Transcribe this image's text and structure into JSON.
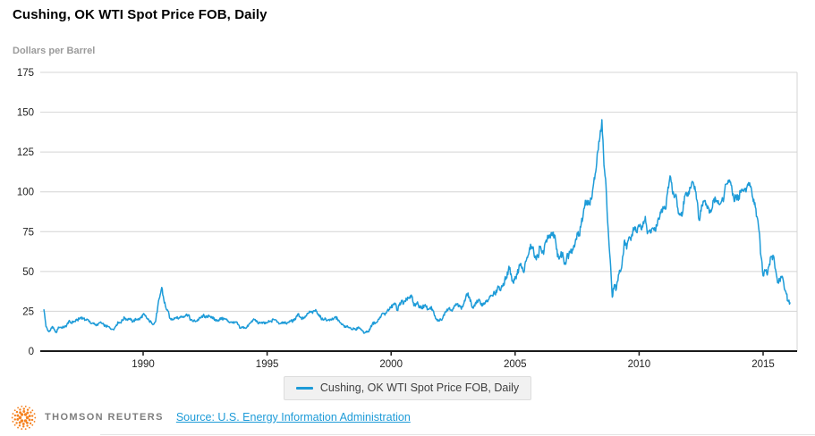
{
  "header": {
    "title": "Cushing, OK WTI Spot Price FOB, Daily",
    "units_label": "Dollars per Barrel"
  },
  "legend": {
    "series_label": "Cushing, OK WTI Spot Price FOB, Daily"
  },
  "footer": {
    "brand": "THOMSON REUTERS",
    "source_link": "Source: U.S. Energy Information Administration"
  },
  "colors": {
    "line": "#1d9bd8",
    "link": "#1d9bd8",
    "grid": "#d4d4d4",
    "axis": "#1a1a1a",
    "tick_text": "#1f1f1f",
    "subtitle": "#9b9b9b",
    "legend_bg": "#f1f1f1",
    "brand_orange": "#f58220",
    "brand_text": "#7d7d7d"
  },
  "chart_data": {
    "type": "line",
    "title": "Cushing, OK WTI Spot Price FOB, Daily",
    "ylabel": "Dollars per Barrel",
    "xlabel": "",
    "grid": "horizontal",
    "legend_position": "bottom-center",
    "ylim": [
      0,
      175
    ],
    "y_ticks": [
      0,
      25,
      50,
      75,
      100,
      125,
      150,
      175
    ],
    "x_ticks": [
      1990,
      1995,
      2000,
      2005,
      2010,
      2015
    ],
    "xlim_years": [
      1985.85,
      2016.4
    ],
    "series": [
      {
        "name": "Cushing, OK WTI Spot Price FOB, Daily",
        "color": "#1d9bd8",
        "x_start_year": 1986,
        "x_interval": "monthly",
        "x_end": "2016-02",
        "values": [
          25.9,
          15.4,
          12.6,
          12.8,
          15.4,
          13.4,
          11.6,
          15.1,
          14.9,
          14.9,
          15.2,
          16.1,
          18.7,
          17.7,
          18.3,
          18.7,
          19.4,
          20.1,
          21.3,
          20.3,
          19.5,
          19.9,
          18.9,
          17.3,
          17.2,
          16.8,
          16.2,
          17.9,
          17.4,
          16.5,
          15.5,
          15.5,
          14.5,
          13.8,
          14.0,
          16.4,
          18.0,
          17.9,
          19.4,
          21.0,
          20.0,
          20.0,
          19.6,
          18.5,
          19.6,
          20.1,
          19.9,
          21.1,
          22.9,
          22.1,
          20.4,
          18.6,
          18.2,
          17.0,
          18.5,
          27.2,
          33.7,
          40.0,
          32.3,
          27.3,
          25.2,
          20.5,
          19.9,
          20.8,
          21.2,
          20.2,
          21.4,
          21.7,
          21.9,
          23.2,
          22.5,
          19.5,
          18.8,
          19.0,
          19.0,
          20.2,
          20.9,
          22.4,
          21.8,
          21.3,
          21.9,
          21.7,
          20.3,
          19.4,
          19.1,
          20.1,
          20.3,
          20.3,
          19.9,
          19.1,
          17.9,
          18.0,
          17.5,
          18.1,
          16.7,
          14.5,
          15.0,
          14.8,
          14.7,
          16.4,
          17.9,
          19.1,
          19.7,
          18.4,
          17.5,
          17.7,
          18.1,
          17.2,
          18.0,
          18.5,
          18.5,
          19.9,
          19.7,
          18.4,
          17.3,
          18.0,
          18.2,
          17.4,
          18.0,
          19.0,
          18.9,
          19.1,
          21.3,
          23.5,
          21.2,
          20.5,
          21.3,
          22.0,
          24.0,
          24.9,
          23.7,
          25.4,
          25.1,
          22.2,
          21.0,
          19.7,
          20.8,
          19.2,
          19.6,
          19.9,
          19.8,
          21.3,
          20.2,
          18.3,
          16.7,
          16.1,
          15.0,
          15.4,
          14.9,
          13.7,
          14.1,
          13.4,
          15.0,
          14.4,
          13.0,
          11.3,
          12.5,
          12.0,
          14.7,
          17.3,
          17.7,
          17.9,
          20.1,
          21.3,
          23.9,
          22.6,
          25.0,
          26.1,
          27.2,
          29.4,
          29.9,
          25.7,
          28.8,
          31.8,
          29.7,
          31.2,
          33.9,
          33.1,
          34.4,
          28.5,
          29.6,
          29.6,
          27.2,
          27.5,
          28.6,
          27.6,
          26.4,
          27.4,
          26.2,
          22.2,
          19.7,
          19.3,
          19.7,
          20.7,
          24.4,
          26.3,
          27.0,
          25.5,
          26.9,
          28.4,
          29.7,
          28.9,
          26.3,
          29.4,
          33.0,
          35.8,
          33.5,
          28.2,
          28.1,
          30.7,
          30.8,
          31.6,
          28.3,
          30.3,
          31.1,
          32.1,
          34.3,
          34.7,
          36.8,
          36.7,
          40.3,
          38.0,
          40.8,
          44.9,
          46.0,
          53.3,
          48.5,
          43.3,
          46.8,
          48.0,
          54.3,
          53.0,
          49.8,
          56.3,
          58.7,
          65.0,
          65.6,
          62.4,
          58.3,
          59.4,
          65.5,
          61.6,
          62.9,
          69.7,
          70.9,
          71.0,
          74.4,
          73.0,
          63.9,
          58.9,
          59.4,
          62.0,
          54.5,
          59.3,
          60.6,
          64.0,
          63.5,
          67.5,
          74.1,
          72.4,
          79.9,
          86.2,
          94.6,
          91.7,
          93.0,
          95.4,
          105.5,
          112.6,
          125.4,
          133.9,
          145.3,
          116.6,
          103.9,
          76.7,
          57.4,
          33.9,
          41.7,
          39.1,
          48.0,
          49.8,
          59.2,
          69.7,
          64.1,
          71.1,
          69.5,
          75.8,
          78.0,
          74.3,
          78.2,
          76.4,
          81.2,
          84.5,
          73.7,
          75.4,
          76.4,
          76.6,
          75.3,
          81.9,
          84.3,
          89.2,
          89.4,
          89.6,
          102.9,
          110.0,
          101.3,
          96.3,
          97.3,
          86.3,
          85.6,
          86.4,
          97.2,
          98.6,
          100.3,
          102.3,
          106.2,
          103.3,
          94.7,
          82.3,
          87.9,
          94.1,
          94.5,
          89.5,
          86.7,
          88.3,
          94.8,
          95.3,
          93.0,
          92.0,
          94.5,
          95.8,
          104.7,
          106.6,
          106.3,
          100.5,
          93.9,
          97.6,
          94.6,
          100.8,
          100.8,
          102.1,
          102.2,
          105.8,
          103.6,
          96.5,
          93.2,
          84.4,
          75.8,
          59.3,
          47.2,
          50.6,
          47.8,
          54.5,
          59.3,
          59.8,
          51.2,
          42.9,
          45.5,
          46.2,
          42.4,
          37.2,
          31.7,
          30.3
        ]
      }
    ]
  }
}
